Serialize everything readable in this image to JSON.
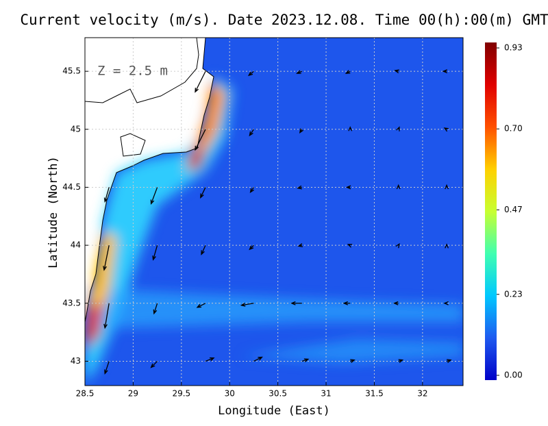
{
  "chart_data": {
    "type": "quiver",
    "title": "Current velocity (m/s). Date 2023.12.08. Time 00(h):00(m) GMT",
    "annotation": "Z = 2.5 m",
    "x_label": "Longitude (East)",
    "y_label": "Latitude (North)",
    "xlim": [
      28.5,
      32.42
    ],
    "ylim": [
      42.79,
      45.79
    ],
    "xticks": [
      28.5,
      29,
      29.5,
      30,
      30.5,
      31,
      31.5,
      32
    ],
    "yticks": [
      43,
      43.5,
      44,
      44.5,
      45,
      45.5
    ],
    "grid": true,
    "arrow_lon": [
      28.75,
      29.25,
      29.75,
      30.25,
      30.75,
      31.25,
      31.75,
      32.25
    ],
    "arrow_lat": [
      45.5,
      45.0,
      44.5,
      44.0,
      43.5,
      43.0
    ],
    "u": [
      [
        null,
        null,
        -0.25,
        -0.12,
        -0.12,
        -0.1,
        -0.08,
        -0.08
      ],
      [
        null,
        null,
        -0.25,
        -0.1,
        -0.05,
        0.0,
        0.02,
        -0.05
      ],
      [
        -0.1,
        -0.15,
        -0.12,
        -0.08,
        -0.1,
        -0.08,
        0.0,
        0.0
      ],
      [
        -0.12,
        -0.1,
        -0.1,
        -0.1,
        -0.08,
        -0.05,
        0.02,
        0.0
      ],
      [
        -0.1,
        -0.08,
        -0.2,
        -0.3,
        -0.25,
        -0.15,
        -0.1,
        -0.05
      ],
      [
        -0.1,
        -0.15,
        0.2,
        0.2,
        0.15,
        0.1,
        0.1,
        0.1
      ]
    ],
    "v": [
      [
        null,
        null,
        -0.5,
        -0.1,
        -0.05,
        -0.05,
        0.02,
        0.0
      ],
      [
        null,
        null,
        -0.5,
        -0.15,
        -0.08,
        0.05,
        0.05,
        0.03
      ],
      [
        -0.35,
        -0.4,
        -0.25,
        -0.12,
        -0.02,
        0.0,
        0.05,
        0.05
      ],
      [
        -0.6,
        -0.35,
        -0.22,
        -0.1,
        -0.02,
        0.02,
        0.03,
        0.02
      ],
      [
        -0.6,
        -0.25,
        -0.1,
        -0.05,
        0.0,
        0.0,
        0.0,
        0.0
      ],
      [
        -0.3,
        -0.15,
        0.08,
        0.1,
        0.05,
        0.03,
        0.03,
        0.03
      ]
    ],
    "arrow_color": "#000000",
    "colorbar": {
      "lim": [
        0,
        0.93
      ],
      "ticks": [
        {
          "value": 0,
          "label": "0.00"
        },
        0.23,
        0.47,
        {
          "value": 0.7,
          "label": "0.70"
        },
        0.93
      ],
      "colors": [
        "#0000c8",
        "#1e5af0",
        "#00c8ff",
        "#40ffb0",
        "#c8ff30",
        "#ffd000",
        "#ff5000",
        "#e00000",
        "#800000"
      ]
    }
  }
}
